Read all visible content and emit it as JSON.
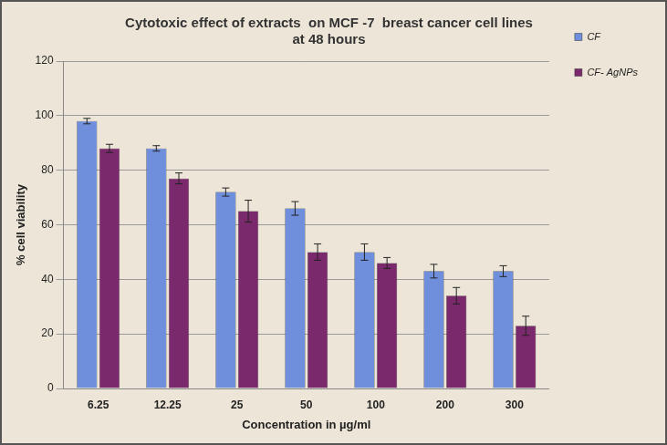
{
  "chart_data": {
    "type": "bar",
    "title": [
      "Cytotoxic effect of extracts  on MCF -7  breast cancer cell lines",
      "at 48 hours"
    ],
    "x_label": "Concentration in µg/ml",
    "y_label": "% cell viability",
    "categories": [
      "6.25",
      "12.25",
      "25",
      "50",
      "100",
      "200",
      "300"
    ],
    "series": [
      {
        "name": "CF",
        "color": "#6f8fdc",
        "values": [
          98,
          88,
          72,
          66,
          50,
          43,
          43
        ],
        "errors": [
          1,
          1,
          1.5,
          2.5,
          3,
          2.5,
          2
        ]
      },
      {
        "name": "CF- AgNPs",
        "color": "#7a2a6c",
        "values": [
          88,
          77,
          65,
          50,
          46,
          34,
          23
        ],
        "errors": [
          1.5,
          2,
          4,
          3,
          2,
          3,
          3.5
        ]
      }
    ],
    "ylim": [
      0,
      120
    ],
    "yticks": [
      0,
      20,
      40,
      60,
      80,
      100,
      120
    ],
    "grid": true,
    "legend": "right"
  }
}
